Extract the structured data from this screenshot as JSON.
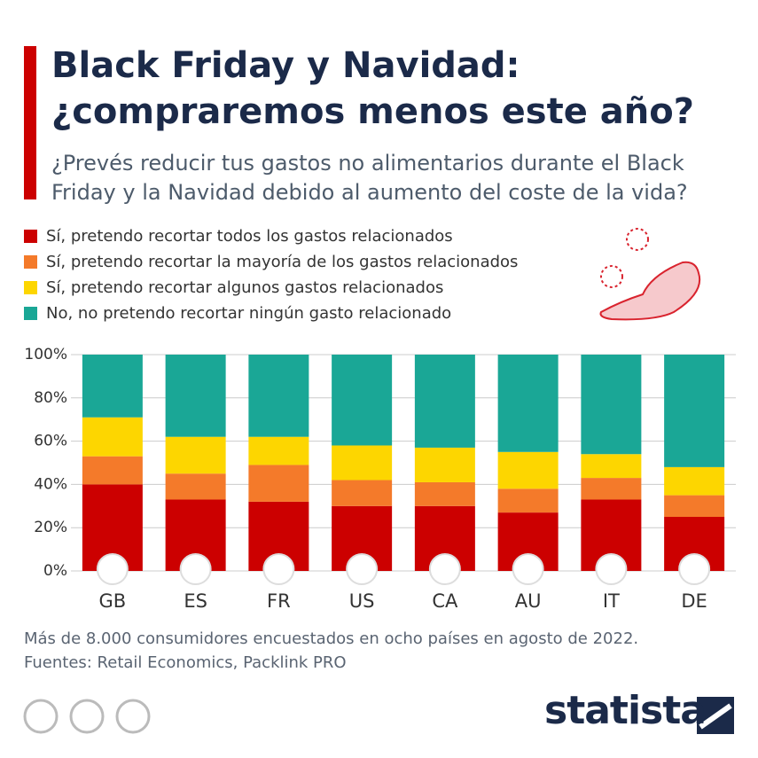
{
  "chart_data": {
    "type": "stacked_bar",
    "title": "Black Friday y Navidad: ¿compraremos menos este año?",
    "subtitle": "¿Prevés reducir tus gastos no alimentarios durante el Black Friday y la Navidad debido al aumento del coste de la vida?",
    "categories": [
      "GB",
      "ES",
      "FR",
      "US",
      "CA",
      "AU",
      "IT",
      "DE"
    ],
    "series": [
      {
        "name": "Sí, pretendo recortar todos los gastos relacionados",
        "color": "#cc0000",
        "values": [
          40,
          33,
          32,
          30,
          30,
          27,
          33,
          25
        ]
      },
      {
        "name": "Sí, pretendo recortar la mayoría de los gastos relacionados",
        "color": "#f47a2a",
        "values": [
          13,
          12,
          17,
          12,
          11,
          11,
          10,
          10
        ]
      },
      {
        "name": "Sí, pretendo recortar algunos gastos relacionados",
        "color": "#fdd600",
        "values": [
          18,
          17,
          13,
          16,
          16,
          17,
          11,
          13
        ]
      },
      {
        "name": "No, no pretendo recortar ningún gasto relacionado",
        "color": "#1aa796",
        "values": [
          29,
          38,
          38,
          42,
          43,
          45,
          46,
          52
        ]
      }
    ],
    "ylim": [
      0,
      100
    ],
    "yticks": [
      {
        "value": 0,
        "label": "0%"
      },
      {
        "value": 20,
        "label": "20%"
      },
      {
        "value": 40,
        "label": "40%"
      },
      {
        "value": 60,
        "label": "60%"
      },
      {
        "value": 80,
        "label": "80%"
      },
      {
        "value": 100,
        "label": "100%"
      }
    ],
    "grid": true,
    "note": "Más de 8.000 consumidores encuestados en ocho países en agosto de 2022.",
    "source": "Fuentes: Retail Economics, Packlink PRO"
  },
  "footer": {
    "brand": "statista"
  }
}
